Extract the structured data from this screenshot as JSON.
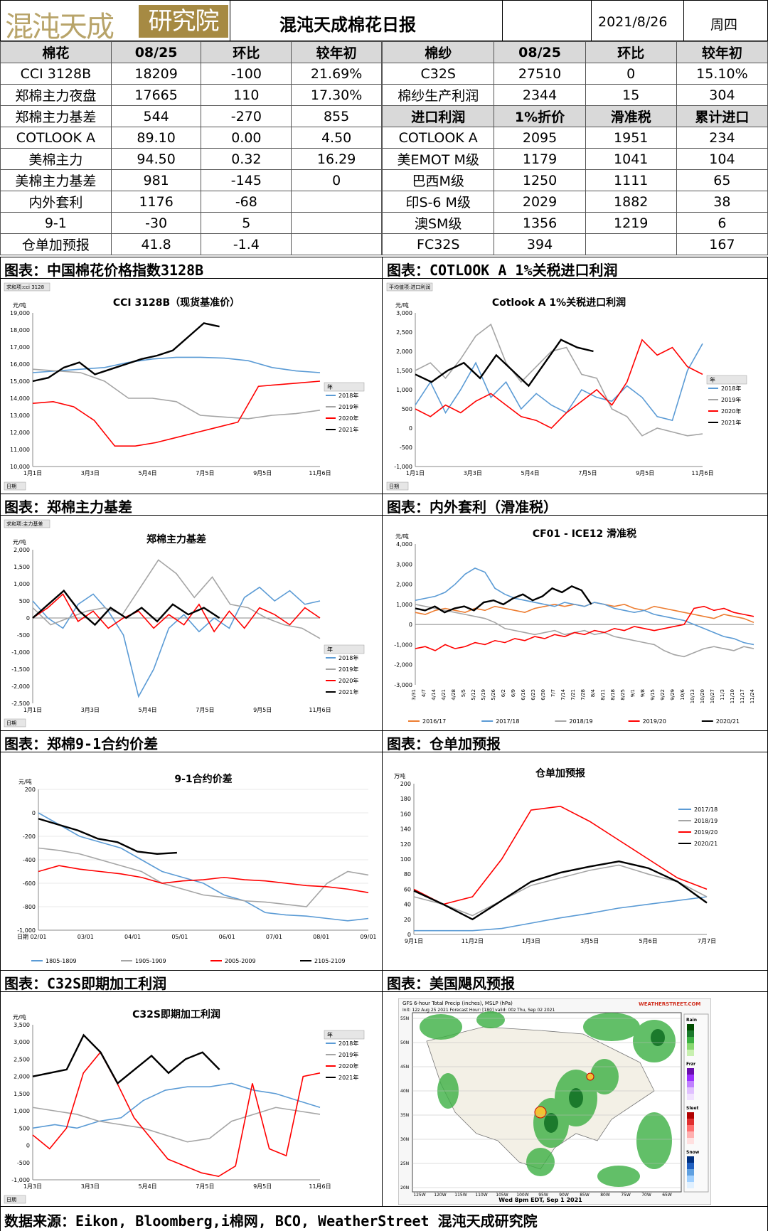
{
  "header": {
    "logo_left": "混沌天成",
    "logo_right": "研究院",
    "title": "混沌天成棉花日报",
    "date": "2021/8/26",
    "weekday": "周四"
  },
  "left_table": {
    "columns": [
      "棉花",
      "08/25",
      "环比",
      "较年初"
    ],
    "rows": [
      [
        "CCI 3128B",
        "18209",
        "-100",
        "21.69%"
      ],
      [
        "郑棉主力夜盘",
        "17665",
        "110",
        "17.30%"
      ],
      [
        "郑棉主力基差",
        "544",
        "-270",
        "855"
      ],
      [
        "COTLOOK A",
        "89.10",
        "0.00",
        "4.50"
      ],
      [
        "美棉主力",
        "94.50",
        "0.32",
        "16.29"
      ],
      [
        "美棉主力基差",
        "981",
        "-145",
        "0"
      ],
      [
        "内外套利",
        "1176",
        "-68",
        ""
      ],
      [
        "9-1",
        "-30",
        "5",
        ""
      ],
      [
        "仓单加预报",
        "41.8",
        "-1.4",
        ""
      ]
    ]
  },
  "right_table": {
    "columns": [
      "棉纱",
      "08/25",
      "环比",
      "较年初"
    ],
    "rows": [
      [
        "C32S",
        "27510",
        "0",
        "15.10%"
      ],
      [
        "棉纱生产利润",
        "2344",
        "15",
        "304"
      ]
    ],
    "sub_columns": [
      "进口利润",
      "1%折价",
      "滑准税",
      "累计进口"
    ],
    "sub_rows": [
      [
        "COTLOOK A",
        "2095",
        "1951",
        "234"
      ],
      [
        "美EMOT M级",
        "1179",
        "1041",
        "104"
      ],
      [
        "巴西M级",
        "1250",
        "1111",
        "65"
      ],
      [
        "印S-6 M级",
        "2029",
        "1882",
        "38"
      ],
      [
        "澳SM级",
        "1356",
        "1219",
        "6"
      ],
      [
        "FC32S",
        "394",
        "",
        "167"
      ]
    ]
  },
  "sections": {
    "s1": "图表：中国棉花价格指数3128B",
    "s2": "图表：COTLOOK A 1%关税进口利润",
    "s3": "图表：郑棉主力基差",
    "s4": "图表：内外套利（滑准税）",
    "s5": "图表：郑棉9-1合约价差",
    "s6": "图表：仓单加预报",
    "s7": "图表：C32S即期加工利润",
    "s8": "图表：美国飓风预报"
  },
  "footer": "数据来源：Eikon, Bloomberg,i棉网, BCO, WeatherStreet 混沌天成研究院",
  "colors": {
    "y2018": "#5b9bd5",
    "y2019": "#a5a5a5",
    "y2020": "#ff0000",
    "y2021": "#000000",
    "orange": "#ed7d31",
    "green": "#9bbb59"
  },
  "chart_data": [
    {
      "type": "line",
      "title": "CCI 3128B（现货基准价）",
      "tag": "求和项:cci 3128",
      "ylabel": "元/吨",
      "ylim": [
        10000,
        19000
      ],
      "yticks": [
        "10,000",
        "11,000",
        "12,000",
        "13,000",
        "14,000",
        "15,000",
        "16,000",
        "17,000",
        "18,000",
        "19,000"
      ],
      "xticks": [
        "1月1日",
        "3月3日",
        "5月4日",
        "7月5日",
        "9月5日",
        "11月6日"
      ],
      "legend_title": "年",
      "field_button": "日期",
      "series": [
        {
          "name": "2018年",
          "values": [
            15500,
            15600,
            15700,
            15800,
            16100,
            16300,
            16400,
            16400,
            16350,
            16200,
            15800,
            15600,
            15500
          ]
        },
        {
          "name": "2019年",
          "values": [
            15700,
            15600,
            15500,
            15000,
            14000,
            14000,
            13800,
            13000,
            12900,
            12800,
            13000,
            13100,
            13300
          ]
        },
        {
          "name": "2020年",
          "values": [
            13700,
            13800,
            13500,
            12700,
            11200,
            11200,
            11400,
            11700,
            12000,
            12300,
            12600,
            14700,
            14800,
            14900,
            15000
          ]
        },
        {
          "name": "2021年",
          "values": [
            15000,
            15200,
            15800,
            16100,
            15400,
            15700,
            16000,
            16300,
            16500,
            16800,
            17600,
            18400,
            18200
          ]
        }
      ]
    },
    {
      "type": "line",
      "title": "Cotlook A 1%关税进口利润",
      "tag": "平均值项:进口利润",
      "ylabel": "元/吨",
      "ylim": [
        -1000,
        3000
      ],
      "yticks": [
        "-1,000",
        "-500",
        "0",
        "500",
        "1,000",
        "1,500",
        "2,000",
        "2,500",
        "3,000"
      ],
      "xticks": [
        "1月1日",
        "3月3日",
        "5月4日",
        "7月5日",
        "9月5日",
        "11月6日"
      ],
      "legend_title": "年",
      "field_button": "日期",
      "series": [
        {
          "name": "2018年",
          "values": [
            600,
            1200,
            400,
            1000,
            1700,
            800,
            1200,
            500,
            900,
            600,
            400,
            1000,
            800,
            700,
            1100,
            800,
            300,
            200,
            1500,
            2200
          ]
        },
        {
          "name": "2019年",
          "values": [
            1500,
            1700,
            1300,
            1800,
            2400,
            2700,
            1700,
            1200,
            1600,
            2000,
            2100,
            1400,
            1300,
            500,
            300,
            -200,
            0,
            -100,
            -200,
            -150
          ]
        },
        {
          "name": "2020年",
          "values": [
            500,
            300,
            600,
            400,
            700,
            900,
            600,
            300,
            200,
            0,
            400,
            700,
            1000,
            600,
            1200,
            2300,
            1900,
            2100,
            1600,
            1400
          ]
        },
        {
          "name": "2021年",
          "values": [
            1400,
            1200,
            1500,
            1700,
            1300,
            1900,
            1500,
            1100,
            1700,
            2300,
            2100,
            2000
          ]
        }
      ]
    },
    {
      "type": "line",
      "title": "郑棉主力基差",
      "tag": "求和项:主力基差",
      "ylabel": "元/吨",
      "ylim": [
        -2500,
        2000
      ],
      "yticks": [
        "-2,500",
        "-2,000",
        "-1,500",
        "-1,000",
        "-500",
        "0",
        "500",
        "1,000",
        "1,500",
        "2,000"
      ],
      "xticks": [
        "1月1日",
        "3月3日",
        "5月4日",
        "7月5日",
        "9月5日",
        "11月6日"
      ],
      "legend_title": "年",
      "field_button": "日期",
      "series": [
        {
          "name": "2018年",
          "values": [
            500,
            0,
            -300,
            400,
            700,
            200,
            -500,
            -2300,
            -1500,
            -300,
            100,
            -400,
            0,
            -300,
            600,
            900,
            500,
            800,
            400,
            500
          ]
        },
        {
          "name": "2019年",
          "values": [
            300,
            -200,
            0,
            200,
            300,
            100,
            900,
            1700,
            1300,
            600,
            1200,
            400,
            300,
            0,
            -200,
            -300,
            -600
          ]
        },
        {
          "name": "2020年",
          "values": [
            0,
            300,
            700,
            -100,
            200,
            -300,
            0,
            200,
            -300,
            100,
            -200,
            400,
            -400,
            200,
            -300,
            300,
            100,
            -200,
            300,
            0
          ]
        },
        {
          "name": "2021年",
          "values": [
            0,
            400,
            800,
            200,
            -200,
            300,
            0,
            300,
            -100,
            400,
            100,
            300,
            0
          ]
        }
      ]
    },
    {
      "type": "line",
      "title": "CF01 - ICE12 滑准税",
      "ylabel": "元/吨",
      "ylim": [
        -3000,
        4000
      ],
      "yticks": [
        "-3,000",
        "-2,000",
        "-1,000",
        "0",
        "1,000",
        "2,000",
        "3,000",
        "4,000"
      ],
      "xticks": [
        "3/31",
        "4/7",
        "4/14",
        "4/21",
        "4/28",
        "5/5",
        "5/12",
        "5/19",
        "5/26",
        "6/2",
        "6/9",
        "6/16",
        "6/23",
        "6/30",
        "7/7",
        "7/14",
        "7/21",
        "7/28",
        "8/4",
        "8/11",
        "8/18",
        "8/25",
        "9/1",
        "9/8",
        "9/15",
        "9/22",
        "9/29",
        "10/6",
        "10/13",
        "10/20",
        "10/27",
        "11/3",
        "11/10",
        "11/17",
        "11/24"
      ],
      "series": [
        {
          "name": "2016/17",
          "values": [
            600,
            500,
            700,
            800,
            700,
            600,
            800,
            700,
            900,
            800,
            700,
            600,
            800,
            900,
            1000,
            900,
            1000,
            900,
            1100,
            1000,
            900,
            1000,
            800,
            700,
            900,
            800,
            700,
            600,
            500,
            400,
            300,
            500,
            400,
            300,
            100
          ]
        },
        {
          "name": "2017/18",
          "values": [
            1200,
            1300,
            1400,
            1600,
            2000,
            2500,
            2800,
            2600,
            1800,
            1500,
            1300,
            1200,
            1100,
            1000,
            900,
            1100,
            1000,
            900,
            1100,
            1000,
            800,
            700,
            600,
            700,
            500,
            400,
            300,
            200,
            0,
            -200,
            -400,
            -600,
            -700,
            -900,
            -1000
          ]
        },
        {
          "name": "2018/19",
          "values": [
            1000,
            900,
            800,
            700,
            600,
            500,
            400,
            300,
            100,
            -200,
            -300,
            -400,
            -500,
            -400,
            -300,
            -500,
            -400,
            -300,
            -500,
            -400,
            -600,
            -700,
            -800,
            -900,
            -1000,
            -1300,
            -1500,
            -1600,
            -1400,
            -1200,
            -1100,
            -1200,
            -1300,
            -1100,
            -1200
          ]
        },
        {
          "name": "2019/20",
          "values": [
            -1200,
            -1100,
            -1300,
            -1000,
            -1200,
            -1100,
            -900,
            -1000,
            -800,
            -900,
            -700,
            -800,
            -600,
            -700,
            -500,
            -600,
            -400,
            -500,
            -300,
            -400,
            -200,
            -300,
            -100,
            -200,
            -300,
            -200,
            -100,
            0,
            800,
            900,
            700,
            800,
            600,
            500,
            400
          ]
        },
        {
          "name": "2020/21",
          "values": [
            800,
            700,
            900,
            600,
            800,
            900,
            700,
            1100,
            1200,
            1000,
            1300,
            1500,
            1200,
            1400,
            1800,
            1600,
            1900,
            1700,
            1000
          ]
        }
      ]
    },
    {
      "type": "line",
      "title": "9-1合约价差",
      "ylabel": "元/吨",
      "xlabel": "日期",
      "ylim": [
        -1000,
        200
      ],
      "yticks": [
        "-1,000",
        "-800",
        "-600",
        "-400",
        "-200",
        "0",
        "200"
      ],
      "xticks": [
        "02/01",
        "03/01",
        "04/01",
        "05/01",
        "06/01",
        "07/01",
        "08/01",
        "09/01"
      ],
      "series": [
        {
          "name": "1805-1809",
          "values": [
            0,
            -100,
            -200,
            -250,
            -300,
            -400,
            -500,
            -550,
            -600,
            -700,
            -750,
            -850,
            -870,
            -880,
            -900,
            -920,
            -900
          ]
        },
        {
          "name": "1905-1909",
          "values": [
            -300,
            -320,
            -350,
            -400,
            -450,
            -500,
            -600,
            -650,
            -700,
            -720,
            -750,
            -760,
            -780,
            -800,
            -600,
            -500,
            -530
          ]
        },
        {
          "name": "2005-2009",
          "values": [
            -500,
            -450,
            -480,
            -500,
            -520,
            -550,
            -600,
            -580,
            -570,
            -550,
            -570,
            -580,
            -600,
            -620,
            -630,
            -650,
            -680
          ]
        },
        {
          "name": "2105-2109",
          "values": [
            -50,
            -100,
            -150,
            -220,
            -250,
            -330,
            -350,
            -340
          ]
        }
      ]
    },
    {
      "type": "line",
      "title": "仓单加预报",
      "ylabel": "万吨",
      "ylim": [
        0,
        200
      ],
      "yticks": [
        "0",
        "20",
        "40",
        "60",
        "80",
        "100",
        "120",
        "140",
        "160",
        "180",
        "200"
      ],
      "xticks": [
        "9月1日",
        "11月2日",
        "1月3日",
        "3月5日",
        "5月6日",
        "7月7日"
      ],
      "series": [
        {
          "name": "2017/18",
          "values": [
            5,
            5,
            5,
            8,
            15,
            22,
            28,
            35,
            40,
            45,
            50
          ]
        },
        {
          "name": "2018/19",
          "values": [
            50,
            40,
            25,
            45,
            65,
            75,
            85,
            92,
            80,
            70,
            50
          ]
        },
        {
          "name": "2019/20",
          "values": [
            60,
            40,
            50,
            100,
            165,
            170,
            150,
            125,
            100,
            75,
            60
          ]
        },
        {
          "name": "2020/21",
          "values": [
            58,
            40,
            20,
            45,
            70,
            82,
            90,
            97,
            88,
            70,
            42
          ]
        }
      ]
    },
    {
      "type": "line",
      "title": "C32S即期加工利润",
      "ylabel": "元/吨",
      "ylim": [
        -1000,
        3500
      ],
      "yticks": [
        "-1,000",
        "-500",
        "0",
        "500",
        "1,000",
        "1,500",
        "2,000",
        "2,500",
        "3,000",
        "3,500"
      ],
      "xticks": [
        "1月3日",
        "3月3日",
        "5月4日",
        "7月5日",
        "9月5日",
        "11月6日"
      ],
      "legend_title": "年",
      "field_button": "日期",
      "series": [
        {
          "name": "2018年",
          "values": [
            500,
            600,
            500,
            700,
            800,
            1300,
            1600,
            1700,
            1700,
            1800,
            1600,
            1500,
            1300,
            1100
          ]
        },
        {
          "name": "2019年",
          "values": [
            1100,
            1000,
            900,
            700,
            600,
            500,
            300,
            100,
            200,
            700,
            900,
            1100,
            1000,
            900
          ]
        },
        {
          "name": "2020年",
          "values": [
            300,
            -100,
            500,
            2100,
            2700,
            1800,
            800,
            200,
            -400,
            -600,
            -800,
            -900,
            -600,
            1800,
            -100,
            -300,
            2000,
            2100
          ]
        },
        {
          "name": "2021年",
          "values": [
            2000,
            2100,
            2200,
            3200,
            2700,
            1800,
            2200,
            2600,
            2100,
            2500,
            2700,
            2200
          ]
        }
      ]
    }
  ],
  "weather_map": {
    "title": "GFS 6-hour Total Precip (inches), MSLP (hPa)",
    "init": "Init: 12z Aug 25 2021  Forecast Hour: [180]  valid: 00z Thu, Sep 02 2021",
    "valid": "Wed 8pm EDT, Sep 1 2021",
    "brand": "WEATHERSTREET.COM",
    "lat_labels": [
      "55N",
      "50N",
      "45N",
      "40N",
      "35N",
      "30N",
      "25N",
      "20N"
    ],
    "lon_labels": [
      "125W",
      "120W",
      "115W",
      "110W",
      "105W",
      "100W",
      "95W",
      "90W",
      "85W",
      "80W",
      "75W",
      "70W",
      "65W"
    ],
    "legend_groups": [
      "Rain",
      "Frzr",
      "Sleet",
      "Snow"
    ]
  }
}
